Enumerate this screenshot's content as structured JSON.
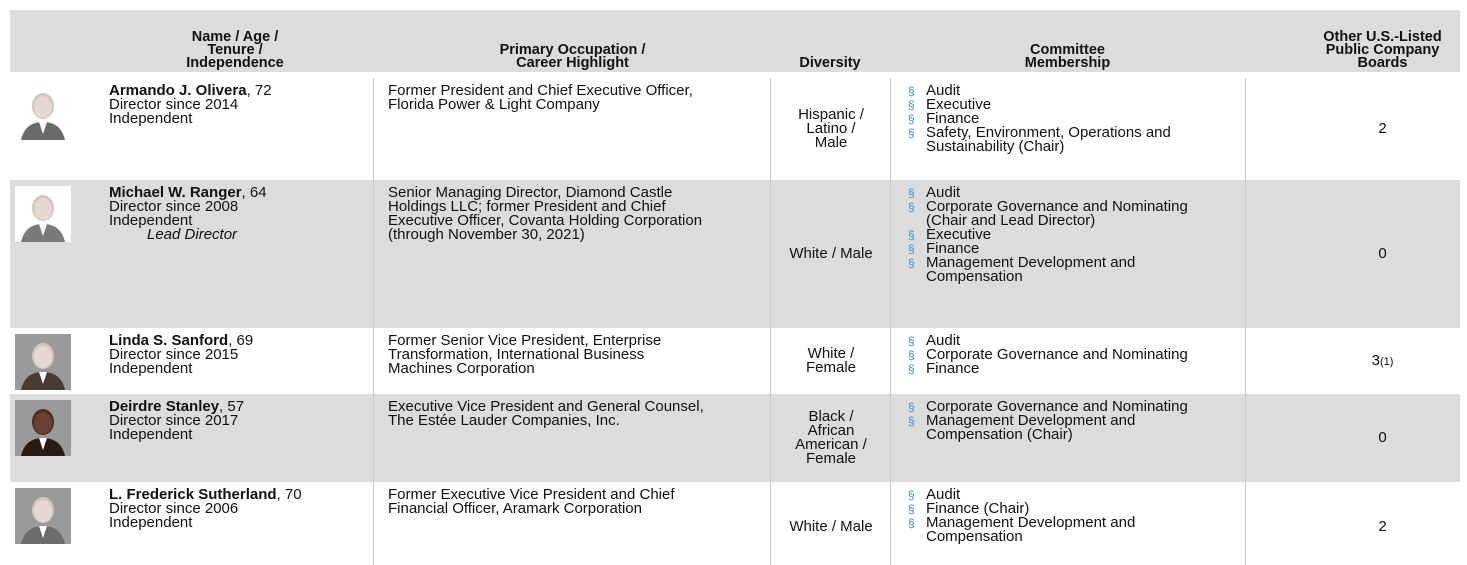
{
  "header": {
    "name": [
      "Name / Age /",
      "Tenure /",
      "Independence"
    ],
    "occupation": [
      "Primary Occupation /",
      "Career Highlight"
    ],
    "diversity": [
      "Diversity"
    ],
    "committee": [
      "Committee",
      "Membership"
    ],
    "boards": [
      "Other U.S.-Listed",
      "Public Company",
      "Boards"
    ]
  },
  "bullet": "§",
  "directors": [
    {
      "name": "Armando J. Olivera",
      "age": ", 72",
      "tenure": "Director since 2014",
      "independence": "Independent",
      "occupation": [
        "Former President and Chief Executive Officer,",
        "Florida Power & Light Company"
      ],
      "diversity": [
        "Hispanic /",
        "Latino /",
        "Male"
      ],
      "committees": [
        [
          "Audit"
        ],
        [
          "Executive"
        ],
        [
          "Finance"
        ],
        [
          "Safety, Environment, Operations and",
          "Sustainability (Chair)"
        ]
      ],
      "boards": "2"
    },
    {
      "name": "Michael W. Ranger",
      "age": ", 64",
      "tenure": "Director since 2008",
      "independence": "Independent",
      "lead": "Lead Director",
      "occupation": [
        "Senior Managing Director, Diamond Castle",
        "Holdings LLC; former President and Chief",
        "Executive Officer, Covanta Holding Corporation",
        "(through November 30, 2021)"
      ],
      "diversity": [
        "White / Male"
      ],
      "committees": [
        [
          "Audit"
        ],
        [
          "Corporate Governance and Nominating",
          "(Chair and Lead Director)"
        ],
        [
          "Executive"
        ],
        [
          "Finance"
        ],
        [
          "Management Development and",
          "Compensation"
        ]
      ],
      "boards": "0"
    },
    {
      "name": "Linda S. Sanford",
      "age": ", 69",
      "tenure": "Director since 2015",
      "independence": "Independent",
      "occupation": [
        "Former Senior Vice President, Enterprise",
        "Transformation, International Business",
        "Machines Corporation"
      ],
      "diversity": [
        "White /",
        "Female"
      ],
      "committees": [
        [
          "Audit"
        ],
        [
          "Corporate Governance and Nominating"
        ],
        [
          "Finance"
        ]
      ],
      "boards": "3",
      "boards_note": "(1)"
    },
    {
      "name": "Deirdre Stanley",
      "age": ", 57",
      "tenure": "Director since 2017",
      "independence": "Independent",
      "occupation": [
        "Executive Vice President and General Counsel,",
        "The Estée Lauder Companies, Inc."
      ],
      "diversity": [
        "Black /",
        "African",
        "American /",
        "Female"
      ],
      "committees": [
        [
          "Corporate Governance and Nominating"
        ],
        [
          "Management Development and",
          "Compensation (Chair)"
        ]
      ],
      "boards": "0"
    },
    {
      "name": "L. Frederick Sutherland",
      "age": ", 70",
      "tenure": "Director since 2006",
      "independence": "Independent",
      "occupation": [
        "Former Executive Vice President and Chief",
        "Financial Officer, Aramark Corporation"
      ],
      "diversity": [
        "White / Male"
      ],
      "committees": [
        [
          "Audit"
        ],
        [
          "Finance (Chair)"
        ],
        [
          "Management Development and",
          "Compensation"
        ]
      ],
      "boards": "2"
    }
  ]
}
